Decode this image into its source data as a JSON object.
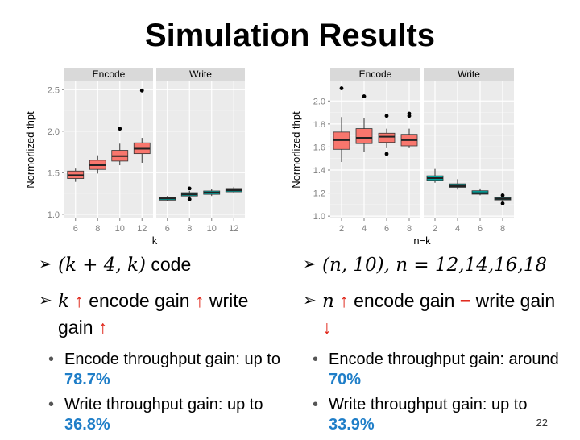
{
  "title": "Simulation Results",
  "page_number": "22",
  "chart_data": [
    {
      "type": "box",
      "ylabel": "Normorlized thpt",
      "xlabel": "k",
      "ylim": [
        0.95,
        2.6
      ],
      "yticks": [
        "1.0",
        "1.5",
        "2.0",
        "2.5"
      ],
      "facets": [
        {
          "label": "Encode",
          "color": "#f8766d",
          "categories": [
            "6",
            "8",
            "10",
            "12"
          ],
          "boxes": [
            {
              "lower": 1.39,
              "q1": 1.43,
              "median": 1.47,
              "q3": 1.52,
              "upper": 1.55,
              "outliers": []
            },
            {
              "lower": 1.49,
              "q1": 1.54,
              "median": 1.59,
              "q3": 1.65,
              "upper": 1.71,
              "outliers": []
            },
            {
              "lower": 1.59,
              "q1": 1.64,
              "median": 1.7,
              "q3": 1.77,
              "upper": 1.85,
              "outliers": [
                2.03
              ]
            },
            {
              "lower": 1.62,
              "q1": 1.73,
              "median": 1.79,
              "q3": 1.86,
              "upper": 1.92,
              "outliers": [
                2.49
              ]
            }
          ]
        },
        {
          "label": "Write",
          "color": "#00a5a0",
          "categories": [
            "6",
            "8",
            "10",
            "12"
          ],
          "boxes": [
            {
              "lower": 1.16,
              "q1": 1.17,
              "median": 1.19,
              "q3": 1.2,
              "upper": 1.22,
              "outliers": []
            },
            {
              "lower": 1.2,
              "q1": 1.22,
              "median": 1.24,
              "q3": 1.26,
              "upper": 1.28,
              "outliers": [
                1.31,
                1.18
              ]
            },
            {
              "lower": 1.22,
              "q1": 1.24,
              "median": 1.26,
              "q3": 1.28,
              "upper": 1.3,
              "outliers": []
            },
            {
              "lower": 1.25,
              "q1": 1.27,
              "median": 1.29,
              "q3": 1.31,
              "upper": 1.33,
              "outliers": []
            }
          ]
        }
      ]
    },
    {
      "type": "box",
      "ylabel": "Normorlized thpt",
      "xlabel": "n−k",
      "ylim": [
        0.98,
        2.17
      ],
      "yticks": [
        "1.0",
        "1.2",
        "1.4",
        "1.6",
        "1.8",
        "2.0"
      ],
      "facets": [
        {
          "label": "Encode",
          "color": "#f8766d",
          "categories": [
            "2",
            "4",
            "6",
            "8"
          ],
          "boxes": [
            {
              "lower": 1.47,
              "q1": 1.58,
              "median": 1.66,
              "q3": 1.73,
              "upper": 1.86,
              "outliers": [
                2.11
              ]
            },
            {
              "lower": 1.56,
              "q1": 1.63,
              "median": 1.68,
              "q3": 1.76,
              "upper": 1.85,
              "outliers": [
                2.04
              ]
            },
            {
              "lower": 1.59,
              "q1": 1.64,
              "median": 1.69,
              "q3": 1.72,
              "upper": 1.76,
              "outliers": [
                1.87,
                1.54
              ]
            },
            {
              "lower": 1.59,
              "q1": 1.61,
              "median": 1.66,
              "q3": 1.71,
              "upper": 1.76,
              "outliers": [
                1.89,
                1.87
              ]
            }
          ]
        },
        {
          "label": "Write",
          "color": "#00a5a0",
          "categories": [
            "2",
            "4",
            "6",
            "8"
          ],
          "boxes": [
            {
              "lower": 1.29,
              "q1": 1.31,
              "median": 1.33,
              "q3": 1.35,
              "upper": 1.41,
              "outliers": []
            },
            {
              "lower": 1.23,
              "q1": 1.25,
              "median": 1.26,
              "q3": 1.28,
              "upper": 1.32,
              "outliers": []
            },
            {
              "lower": 1.18,
              "q1": 1.19,
              "median": 1.2,
              "q3": 1.22,
              "upper": 1.24,
              "outliers": []
            },
            {
              "lower": 1.12,
              "q1": 1.14,
              "median": 1.15,
              "q3": 1.16,
              "upper": 1.16,
              "outliers": [
                1.18,
                1.11
              ]
            }
          ]
        }
      ]
    }
  ],
  "left_bullets": {
    "code_math": "(k + 4, k)",
    "code_word": "code",
    "gain_var": "k",
    "arrow_up": "↑",
    "encode_gain": "encode gain",
    "write_word": "write",
    "gain_word": "gain",
    "sub1_text": "Encode throughput gain: up to",
    "sub1_value": "78.7%",
    "sub2_text": "Write throughput gain: up to",
    "sub2_value": "36.8%"
  },
  "right_bullets": {
    "code_math": "(n, 10), n = 12,14,16,18",
    "gain_var": "n",
    "arrow_up": "↑",
    "encode_gain": "encode gain",
    "dash": "−",
    "write_word": "write",
    "gain_word": "gain",
    "arrow_down": "↓",
    "sub1_text": "Encode throughput gain: around",
    "sub1_value": "70%",
    "sub2_text": "Write throughput gain: up to",
    "sub2_value": "33.9%"
  }
}
